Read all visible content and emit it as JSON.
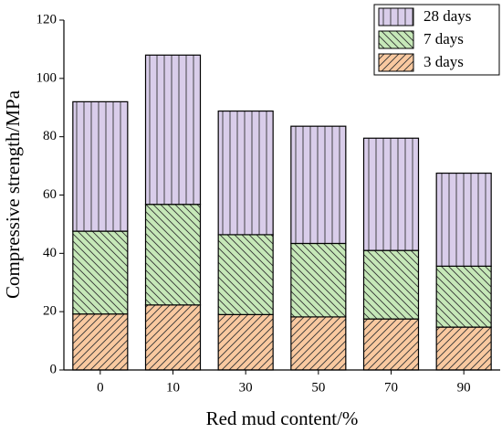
{
  "chart_data": {
    "type": "stacked_bar",
    "xlabel": "Red mud content/%",
    "ylabel": "Compressive strength/MPa",
    "categories": [
      "0",
      "10",
      "30",
      "50",
      "70",
      "90"
    ],
    "series": [
      {
        "name": "3 days",
        "color": "#f9c9a0",
        "hatch": "/",
        "values": [
          19.2,
          22.3,
          19.0,
          18.2,
          17.5,
          14.7
        ]
      },
      {
        "name": "7 days",
        "color": "#c6e8b8",
        "hatch": "\\",
        "values": [
          28.4,
          34.5,
          27.4,
          25.2,
          23.5,
          20.9
        ]
      },
      {
        "name": "28 days",
        "color": "#d9cdea",
        "hatch": "|",
        "values": [
          44.4,
          51.2,
          42.4,
          40.2,
          38.5,
          31.9
        ]
      }
    ],
    "ylim": [
      0,
      120
    ],
    "yticks": [
      0,
      20,
      40,
      60,
      80,
      100,
      120
    ],
    "grid": false
  }
}
